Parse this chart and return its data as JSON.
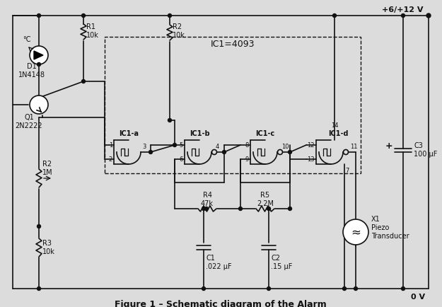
{
  "title": "Figure 1 – Schematic diagram of the Alarm",
  "bg_color": "#e8e8e8",
  "line_color": "#111111",
  "text_color": "#111111",
  "vcc": "+6/+12 V",
  "gnd": "0 V",
  "temp": "°C",
  "D1_label": "D1\n1N4148",
  "Q1_label": "Q1\n2N2222",
  "R1_label": "R1\n10k",
  "R2t_label": "R2\n10k",
  "R2b_label": "R2\n1M",
  "R3_label": "R3\n10k",
  "R4_label": "R4\n47k",
  "R5_label": "R5\n2.2M",
  "C1_label": "C1\n.022 μF",
  "C2_label": "C2\n.15 μF",
  "C3_label": "C3\n100 μF",
  "IC1_label": "IC1=4093",
  "IC1a_label": "IC1-a",
  "IC1b_label": "IC1-b",
  "IC1c_label": "IC1-c",
  "IC1d_label": "IC1-d",
  "X1_label": "X1\nPiezo\nTransducer"
}
